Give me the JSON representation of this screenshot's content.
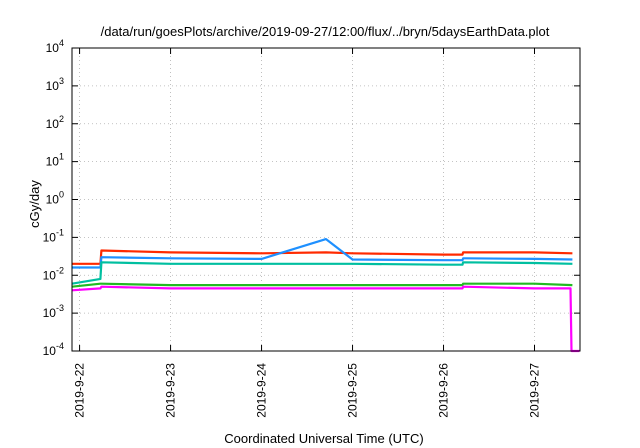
{
  "chart_data": {
    "type": "line",
    "title": "/data/run/goesPlots/archive/2019-09-27/12:00/flux/../bryn/5daysEarthData.plot",
    "xlabel": "Coordinated Universal Time (UTC)",
    "ylabel": "cGy/day",
    "yscale": "log",
    "ylim": [
      0.0001,
      10000
    ],
    "y_ticks": [
      {
        "value": 0.0001,
        "base": "10",
        "exp": "-4"
      },
      {
        "value": 0.001,
        "base": "10",
        "exp": "-3"
      },
      {
        "value": 0.01,
        "base": "10",
        "exp": "-2"
      },
      {
        "value": 0.1,
        "base": "10",
        "exp": "-1"
      },
      {
        "value": 1,
        "base": "10",
        "exp": "0"
      },
      {
        "value": 10,
        "base": "10",
        "exp": "1"
      },
      {
        "value": 100,
        "base": "10",
        "exp": "2"
      },
      {
        "value": 1000,
        "base": "10",
        "exp": "3"
      },
      {
        "value": 10000,
        "base": "10",
        "exp": "4"
      }
    ],
    "xlim": [
      "2019-09-21T22:00",
      "2019-09-27T12:00"
    ],
    "x_ticks": [
      {
        "value": "2019-09-22T00:00",
        "label": "2019-9-22"
      },
      {
        "value": "2019-09-23T00:00",
        "label": "2019-9-23"
      },
      {
        "value": "2019-09-24T00:00",
        "label": "2019-9-24"
      },
      {
        "value": "2019-09-25T00:00",
        "label": "2019-9-25"
      },
      {
        "value": "2019-09-26T00:00",
        "label": "2019-9-26"
      },
      {
        "value": "2019-09-27T00:00",
        "label": "2019-9-27"
      }
    ],
    "grid": true,
    "series": [
      {
        "color": "#ff2a00",
        "x": [
          "2019-09-21T22:00",
          "2019-09-22T05:30",
          "2019-09-22T05:45",
          "2019-09-23T00:00",
          "2019-09-24T00:00",
          "2019-09-24T17:00",
          "2019-09-25T00:00",
          "2019-09-26T00:00",
          "2019-09-26T05:00",
          "2019-09-26T05:10",
          "2019-09-26T06:00",
          "2019-09-27T00:00",
          "2019-09-27T10:00"
        ],
        "y": [
          0.02,
          0.02,
          0.045,
          0.04,
          0.038,
          0.04,
          0.038,
          0.035,
          0.035,
          0.04,
          0.04,
          0.04,
          0.038
        ]
      },
      {
        "color": "#1e90ff",
        "x": [
          "2019-09-21T22:00",
          "2019-09-22T05:30",
          "2019-09-22T05:45",
          "2019-09-23T00:00",
          "2019-09-24T00:00",
          "2019-09-24T17:00",
          "2019-09-25T00:00",
          "2019-09-26T00:00",
          "2019-09-26T05:00",
          "2019-09-26T05:10",
          "2019-09-26T06:00",
          "2019-09-27T00:00",
          "2019-09-27T10:00"
        ],
        "y": [
          0.016,
          0.016,
          0.03,
          0.028,
          0.027,
          0.09,
          0.026,
          0.025,
          0.025,
          0.028,
          0.028,
          0.027,
          0.026
        ]
      },
      {
        "color": "#00bfa0",
        "x": [
          "2019-09-21T22:00",
          "2019-09-22T05:30",
          "2019-09-22T05:45",
          "2019-09-23T00:00",
          "2019-09-24T00:00",
          "2019-09-25T00:00",
          "2019-09-26T00:00",
          "2019-09-26T05:00",
          "2019-09-26T05:10",
          "2019-09-27T00:00",
          "2019-09-27T10:00"
        ],
        "y": [
          0.006,
          0.008,
          0.022,
          0.02,
          0.02,
          0.02,
          0.019,
          0.019,
          0.022,
          0.021,
          0.02
        ]
      },
      {
        "color": "#22bb22",
        "x": [
          "2019-09-21T22:00",
          "2019-09-22T05:30",
          "2019-09-22T05:45",
          "2019-09-23T00:00",
          "2019-09-24T00:00",
          "2019-09-25T00:00",
          "2019-09-26T00:00",
          "2019-09-26T05:00",
          "2019-09-26T05:10",
          "2019-09-27T00:00",
          "2019-09-27T10:00"
        ],
        "y": [
          0.005,
          0.006,
          0.006,
          0.0055,
          0.0055,
          0.0055,
          0.0055,
          0.0055,
          0.006,
          0.006,
          0.0055
        ]
      },
      {
        "color": "#ff00ff",
        "x": [
          "2019-09-21T22:00",
          "2019-09-22T05:30",
          "2019-09-22T05:45",
          "2019-09-23T00:00",
          "2019-09-24T00:00",
          "2019-09-25T00:00",
          "2019-09-26T00:00",
          "2019-09-26T05:00",
          "2019-09-26T05:10",
          "2019-09-27T00:00",
          "2019-09-27T09:30",
          "2019-09-27T09:45",
          "2019-09-27T11:50"
        ],
        "y": [
          0.004,
          0.0045,
          0.005,
          0.0045,
          0.0045,
          0.0045,
          0.0045,
          0.0045,
          0.005,
          0.0045,
          0.0045,
          0.0001,
          0.0001
        ]
      }
    ]
  }
}
